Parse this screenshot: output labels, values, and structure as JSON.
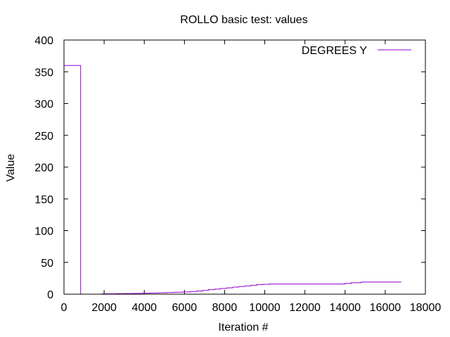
{
  "chart_data": {
    "type": "line",
    "title": "ROLLO  basic test: values",
    "xlabel": "Iteration #",
    "ylabel": "Value",
    "xlim": [
      0,
      18000
    ],
    "ylim": [
      0,
      400
    ],
    "xticks": [
      0,
      2000,
      4000,
      6000,
      8000,
      10000,
      12000,
      14000,
      16000,
      18000
    ],
    "yticks": [
      0,
      50,
      100,
      150,
      200,
      250,
      300,
      350,
      400
    ],
    "grid": false,
    "legend_position": "top-right",
    "colors": {
      "series": "#9400d3",
      "axes": "#000000"
    },
    "series": [
      {
        "name": "DEGREES Y",
        "step": true,
        "x": [
          0,
          0,
          830,
          830,
          1900,
          2200,
          2600,
          3000,
          3500,
          3900,
          4300,
          4700,
          5100,
          5500,
          5900,
          6300,
          6600,
          6900,
          7200,
          7500,
          7800,
          8100,
          8400,
          8700,
          9000,
          9300,
          9600,
          9900,
          10200,
          10500,
          11000,
          12000,
          13000,
          13700,
          14000,
          14300,
          14800,
          15500,
          16000,
          16800
        ],
        "y": [
          0,
          360,
          360,
          0,
          0.5,
          0.6,
          0.8,
          1.0,
          1.2,
          1.5,
          1.8,
          2.2,
          2.6,
          3.0,
          3.5,
          4.2,
          5,
          6,
          7,
          8,
          9,
          10,
          11,
          12,
          13,
          14,
          15,
          15.5,
          16,
          16,
          16,
          16,
          16,
          16,
          17,
          18,
          19,
          19,
          19,
          19
        ]
      }
    ]
  }
}
